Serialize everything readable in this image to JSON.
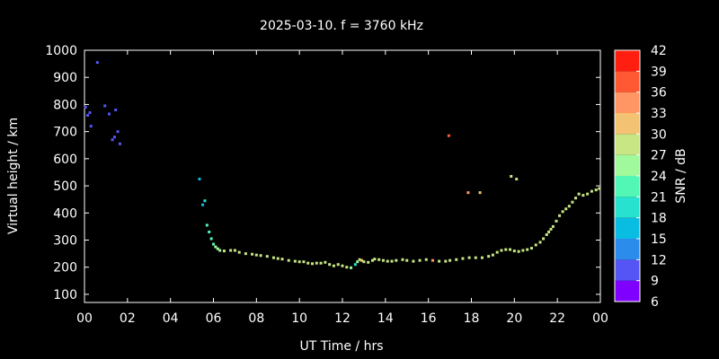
{
  "chart_data": {
    "type": "scatter",
    "title": "2025-03-10. f = 3760 kHz",
    "xlabel": "UT Time / hrs",
    "ylabel": "Virtual height / km",
    "colorbar_label": "SNR / dB",
    "xlim": [
      0,
      24
    ],
    "ylim": [
      70,
      1000
    ],
    "xticks": [
      "00",
      "02",
      "04",
      "06",
      "08",
      "10",
      "12",
      "14",
      "16",
      "18",
      "20",
      "22",
      "00"
    ],
    "yticks": [
      100,
      200,
      300,
      400,
      500,
      600,
      700,
      800,
      900,
      1000
    ],
    "colorbar_ticks": [
      6,
      9,
      12,
      15,
      18,
      21,
      24,
      27,
      30,
      33,
      36,
      39,
      42
    ],
    "colorbar_colors": [
      "#8000ff",
      "#5555f5",
      "#2b8ceb",
      "#09bde2",
      "#27e2cf",
      "#52f7b6",
      "#a0f99b",
      "#c8e684",
      "#f3c373",
      "#ff9664",
      "#ff5934",
      "#ff1e0f"
    ],
    "grid": false,
    "points": [
      [
        0.05,
        790,
        9
      ],
      [
        0.15,
        760,
        9
      ],
      [
        0.25,
        770,
        9
      ],
      [
        0.3,
        720,
        9
      ],
      [
        0.6,
        955,
        9
      ],
      [
        0.95,
        795,
        9
      ],
      [
        1.15,
        765,
        9
      ],
      [
        1.3,
        670,
        9
      ],
      [
        1.4,
        680,
        9
      ],
      [
        1.45,
        780,
        9
      ],
      [
        1.55,
        700,
        9
      ],
      [
        1.65,
        655,
        9
      ],
      [
        16.95,
        685,
        36
      ],
      [
        17.85,
        475,
        33
      ],
      [
        18.4,
        475,
        31
      ],
      [
        19.85,
        535,
        27
      ],
      [
        20.1,
        525,
        27
      ],
      [
        5.35,
        525,
        15
      ],
      [
        5.5,
        430,
        15
      ],
      [
        5.6,
        445,
        18
      ],
      [
        5.7,
        355,
        21
      ],
      [
        5.8,
        330,
        21
      ],
      [
        5.9,
        305,
        21
      ],
      [
        6.0,
        285,
        21
      ],
      [
        6.1,
        275,
        24
      ],
      [
        6.2,
        268,
        24
      ],
      [
        6.3,
        262,
        24
      ],
      [
        6.5,
        260,
        27
      ],
      [
        6.8,
        262,
        27
      ],
      [
        7.0,
        262,
        27
      ],
      [
        7.2,
        255,
        27
      ],
      [
        7.5,
        250,
        27
      ],
      [
        7.8,
        248,
        27
      ],
      [
        8.0,
        245,
        27
      ],
      [
        8.2,
        243,
        27
      ],
      [
        8.5,
        240,
        27
      ],
      [
        8.8,
        235,
        27
      ],
      [
        9.0,
        232,
        27
      ],
      [
        9.2,
        230,
        27
      ],
      [
        9.5,
        225,
        27
      ],
      [
        9.8,
        222,
        27
      ],
      [
        10.0,
        220,
        27
      ],
      [
        10.2,
        220,
        27
      ],
      [
        10.4,
        215,
        27
      ],
      [
        10.6,
        213,
        27
      ],
      [
        10.8,
        215,
        27
      ],
      [
        11.0,
        215,
        27
      ],
      [
        11.2,
        218,
        27
      ],
      [
        11.4,
        210,
        27
      ],
      [
        11.6,
        205,
        27
      ],
      [
        11.8,
        210,
        27
      ],
      [
        12.0,
        205,
        27
      ],
      [
        12.2,
        200,
        27
      ],
      [
        12.4,
        198,
        24
      ],
      [
        12.6,
        210,
        18
      ],
      [
        12.7,
        220,
        24
      ],
      [
        12.8,
        228,
        27
      ],
      [
        12.9,
        225,
        30
      ],
      [
        13.0,
        220,
        27
      ],
      [
        13.2,
        218,
        27
      ],
      [
        13.4,
        225,
        27
      ],
      [
        13.5,
        230,
        27
      ],
      [
        13.7,
        228,
        27
      ],
      [
        13.9,
        225,
        27
      ],
      [
        14.1,
        222,
        27
      ],
      [
        14.3,
        222,
        27
      ],
      [
        14.5,
        225,
        27
      ],
      [
        14.8,
        228,
        27
      ],
      [
        15.0,
        225,
        27
      ],
      [
        15.3,
        222,
        27
      ],
      [
        15.6,
        225,
        27
      ],
      [
        15.9,
        228,
        27
      ],
      [
        16.2,
        225,
        33
      ],
      [
        16.5,
        222,
        27
      ],
      [
        16.8,
        222,
        27
      ],
      [
        17.0,
        225,
        27
      ],
      [
        17.3,
        228,
        27
      ],
      [
        17.6,
        232,
        27
      ],
      [
        17.9,
        235,
        27
      ],
      [
        18.2,
        235,
        27
      ],
      [
        18.5,
        235,
        27
      ],
      [
        18.8,
        240,
        27
      ],
      [
        19.0,
        245,
        27
      ],
      [
        19.2,
        255,
        27
      ],
      [
        19.4,
        262,
        27
      ],
      [
        19.6,
        265,
        27
      ],
      [
        19.8,
        265,
        27
      ],
      [
        20.0,
        260,
        27
      ],
      [
        20.2,
        258,
        27
      ],
      [
        20.4,
        262,
        27
      ],
      [
        20.6,
        265,
        27
      ],
      [
        20.8,
        270,
        27
      ],
      [
        21.0,
        282,
        27
      ],
      [
        21.2,
        292,
        27
      ],
      [
        21.35,
        305,
        27
      ],
      [
        21.5,
        320,
        27
      ],
      [
        21.6,
        330,
        27
      ],
      [
        21.7,
        340,
        27
      ],
      [
        21.8,
        350,
        27
      ],
      [
        21.95,
        370,
        27
      ],
      [
        22.1,
        390,
        27
      ],
      [
        22.25,
        405,
        27
      ],
      [
        22.4,
        415,
        27
      ],
      [
        22.55,
        425,
        27
      ],
      [
        22.7,
        440,
        27
      ],
      [
        22.85,
        455,
        27
      ],
      [
        23.0,
        470,
        27
      ],
      [
        23.2,
        465,
        27
      ],
      [
        23.4,
        470,
        27
      ],
      [
        23.6,
        480,
        27
      ],
      [
        23.8,
        485,
        27
      ],
      [
        23.95,
        490,
        27
      ]
    ]
  }
}
